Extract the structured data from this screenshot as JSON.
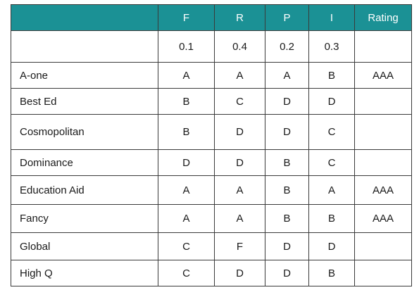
{
  "header": {
    "blank": "",
    "columns": [
      "F",
      "R",
      "P",
      "I",
      "Rating"
    ]
  },
  "weights": {
    "label": "",
    "values": [
      "0.1",
      "0.4",
      "0.2",
      "0.3"
    ],
    "rating": ""
  },
  "rows": [
    {
      "name": "A-one",
      "grades": [
        "A",
        "A",
        "A",
        "B"
      ],
      "rating": "AAA"
    },
    {
      "name": "Best Ed",
      "grades": [
        "B",
        "C",
        "D",
        "D"
      ],
      "rating": ""
    },
    {
      "name": "Cosmopolitan",
      "grades": [
        "B",
        "D",
        "D",
        "C"
      ],
      "rating": ""
    },
    {
      "name": "Dominance",
      "grades": [
        "D",
        "D",
        "B",
        "C"
      ],
      "rating": ""
    },
    {
      "name": "Education Aid",
      "grades": [
        "A",
        "A",
        "B",
        "A"
      ],
      "rating": "AAA"
    },
    {
      "name": "Fancy",
      "grades": [
        "A",
        "A",
        "B",
        "B"
      ],
      "rating": "AAA"
    },
    {
      "name": "Global",
      "grades": [
        "C",
        "F",
        "D",
        "D"
      ],
      "rating": ""
    },
    {
      "name": "High Q",
      "grades": [
        "C",
        "D",
        "D",
        "B"
      ],
      "rating": ""
    }
  ],
  "colors": {
    "header_bg": "#1b9195",
    "header_text": "#ffffff",
    "border": "#3a3a3a"
  }
}
